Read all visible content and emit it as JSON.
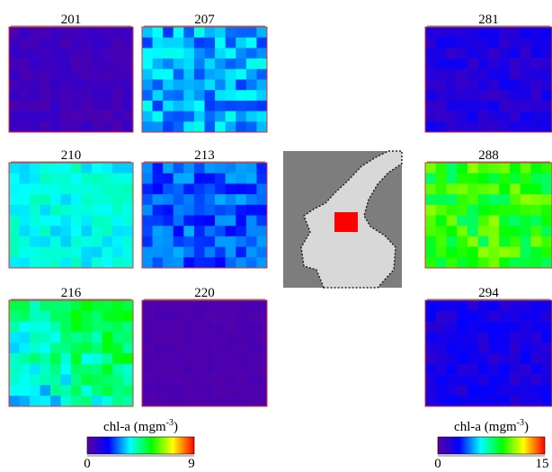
{
  "panels": [
    {
      "label": "201"
    },
    {
      "label": "207"
    },
    {
      "label": "210"
    },
    {
      "label": "213"
    },
    {
      "label": "216"
    },
    {
      "label": "220"
    },
    {
      "label": "281"
    },
    {
      "label": "288"
    },
    {
      "label": "294"
    }
  ],
  "colorbars": [
    {
      "title": "chl-a (mgm",
      "superscript": "-3",
      "close": ")",
      "min_label": "0",
      "max_label": "9"
    },
    {
      "title": "chl-a (mgm",
      "superscript": "-3",
      "close": ")",
      "min_label": "0",
      "max_label": "15"
    }
  ]
}
